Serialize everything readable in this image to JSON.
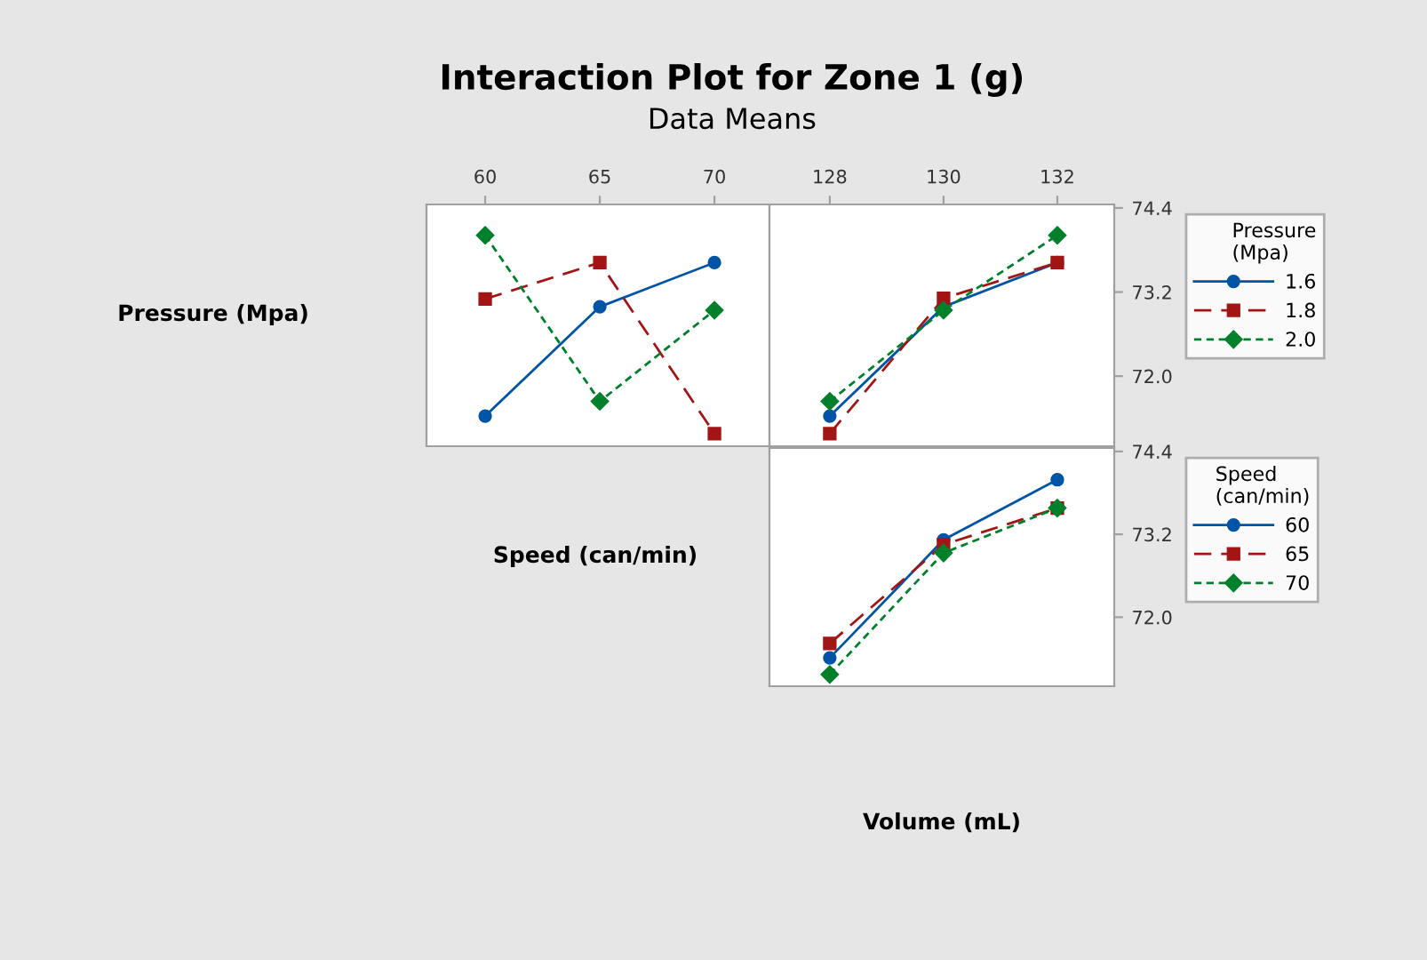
{
  "chart_data": [
    {
      "type": "line",
      "title": "Interaction Plot for Zone 1 (g)",
      "subtitle": "Data Means",
      "ylabel": "Pressure (Mpa)",
      "x": [
        60,
        65,
        70
      ],
      "xlim": [
        57.44,
        72.4
      ],
      "xticks": [
        60,
        65,
        70
      ],
      "ylim": [
        71.0,
        74.45
      ],
      "tick_labels": "x",
      "grid": false,
      "legend": false,
      "series": [
        {
          "color": "#0054a6",
          "values": [
            71.43,
            72.99,
            73.62
          ],
          "marker": "circle",
          "line_style": "solid"
        },
        {
          "color": "#a31515",
          "values": [
            73.1,
            73.62,
            71.18
          ],
          "marker": "square",
          "line_style": "dashed"
        },
        {
          "color": "#00802b",
          "values": [
            74.01,
            71.64,
            72.94
          ],
          "marker": "diamond",
          "line_style": "dotted"
        }
      ]
    },
    {
      "type": "line",
      "x": [
        128,
        130,
        132
      ],
      "xlim": [
        126.94,
        133
      ],
      "xticks": [
        128,
        130,
        132
      ],
      "ylim": [
        71.0,
        74.45
      ],
      "yticks": [
        {
          "value": 72.0,
          "label": "72.0"
        },
        {
          "value": 73.2,
          "label": "73.2"
        },
        {
          "value": 74.4,
          "label": "74.4"
        }
      ],
      "grid": false,
      "legend": "right",
      "legend_title": "Pressure\n(Mpa)",
      "series": [
        {
          "name": "1.6",
          "color": "#0054a6",
          "values": [
            71.43,
            72.99,
            73.62
          ],
          "marker": "circle",
          "line_style": "solid"
        },
        {
          "name": "1.8",
          "color": "#a31515",
          "values": [
            71.18,
            73.11,
            73.62
          ],
          "marker": "square",
          "line_style": "dashed"
        },
        {
          "name": "2.0",
          "color": "#00802b",
          "values": [
            71.64,
            72.94,
            74.01
          ],
          "marker": "diamond",
          "line_style": "dotted"
        }
      ]
    },
    {
      "type": "line",
      "ylabel": "Speed (can/min)",
      "xlabel": "Volume (mL)",
      "x": [
        128,
        130,
        132
      ],
      "xlim": [
        126.94,
        133
      ],
      "ylim": [
        71.0,
        74.45
      ],
      "yticks": [
        {
          "value": 72.0,
          "label": "72.0"
        },
        {
          "value": 73.2,
          "label": "73.2"
        },
        {
          "value": 74.4,
          "label": "74.4"
        }
      ],
      "tick_labels": "y",
      "grid": false,
      "legend": "right",
      "legend_title": "Speed\n(can/min)",
      "series": [
        {
          "name": "60",
          "color": "#0054a6",
          "values": [
            71.41,
            73.12,
            73.99
          ],
          "marker": "circle",
          "line_style": "solid"
        },
        {
          "name": "65",
          "color": "#a31515",
          "values": [
            71.62,
            73.05,
            73.58
          ],
          "marker": "square",
          "line_style": "dashed"
        },
        {
          "name": "70",
          "color": "#00802b",
          "values": [
            71.17,
            72.93,
            73.58
          ],
          "marker": "diamond",
          "line_style": "dotted"
        }
      ]
    }
  ]
}
